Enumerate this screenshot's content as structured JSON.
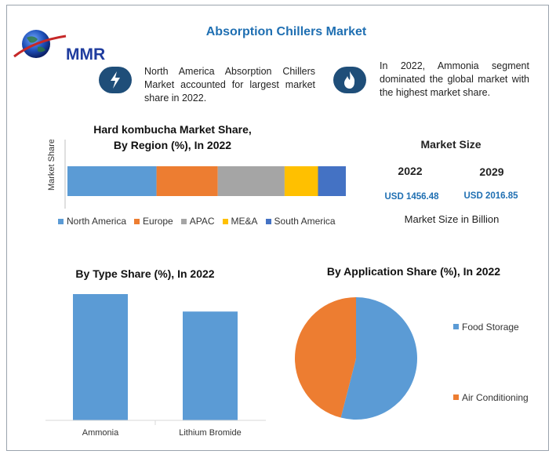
{
  "header": {
    "logo_text": "MMR",
    "title": "Absorption Chillers Market"
  },
  "facts": [
    {
      "icon": "lightning-icon",
      "text": "North America Absorption Chillers Market accounted for largest market share in 2022."
    },
    {
      "icon": "flame-icon",
      "text": "In 2022, Ammonia segment dominated the global market with the highest market share."
    }
  ],
  "colors": {
    "accent_blue": "#1f6fb2",
    "icon_bg": "#1f4e79",
    "north_america": "#5b9bd5",
    "europe": "#ed7d31",
    "apac": "#a5a5a5",
    "mea": "#ffc000",
    "south_america": "#4472c4"
  },
  "chart_data": [
    {
      "type": "bar",
      "orientation": "horizontal-stacked",
      "title_line1": "Hard kombucha Market Share,",
      "title_line2": "By Region (%), In 2022",
      "ylabel": "Market Share",
      "legend_position": "bottom",
      "series": [
        {
          "name": "North America",
          "values": [
            32
          ]
        },
        {
          "name": "Europe",
          "values": [
            22
          ]
        },
        {
          "name": "APAC",
          "values": [
            24
          ]
        },
        {
          "name": "ME&A",
          "values": [
            12
          ]
        },
        {
          "name": "South America",
          "values": [
            10
          ]
        }
      ],
      "xlim": [
        0,
        100
      ]
    },
    {
      "type": "table",
      "title": "Market Size",
      "columns": [
        "2022",
        "2029"
      ],
      "values": [
        "USD 1456.48",
        "USD 2016.85"
      ],
      "note": "Market Size in Billion"
    },
    {
      "type": "bar",
      "title": "By Type Share (%), In 2022",
      "categories": [
        "Ammonia",
        "Lithium Bromide"
      ],
      "values": [
        55,
        45
      ],
      "ylim": [
        0,
        60
      ],
      "grid": false
    },
    {
      "type": "pie",
      "title": "By Application Share (%), In 2022",
      "labels": [
        "Food Storage",
        "Air Conditioning"
      ],
      "values": [
        54,
        46
      ],
      "legend_position": "right"
    }
  ]
}
